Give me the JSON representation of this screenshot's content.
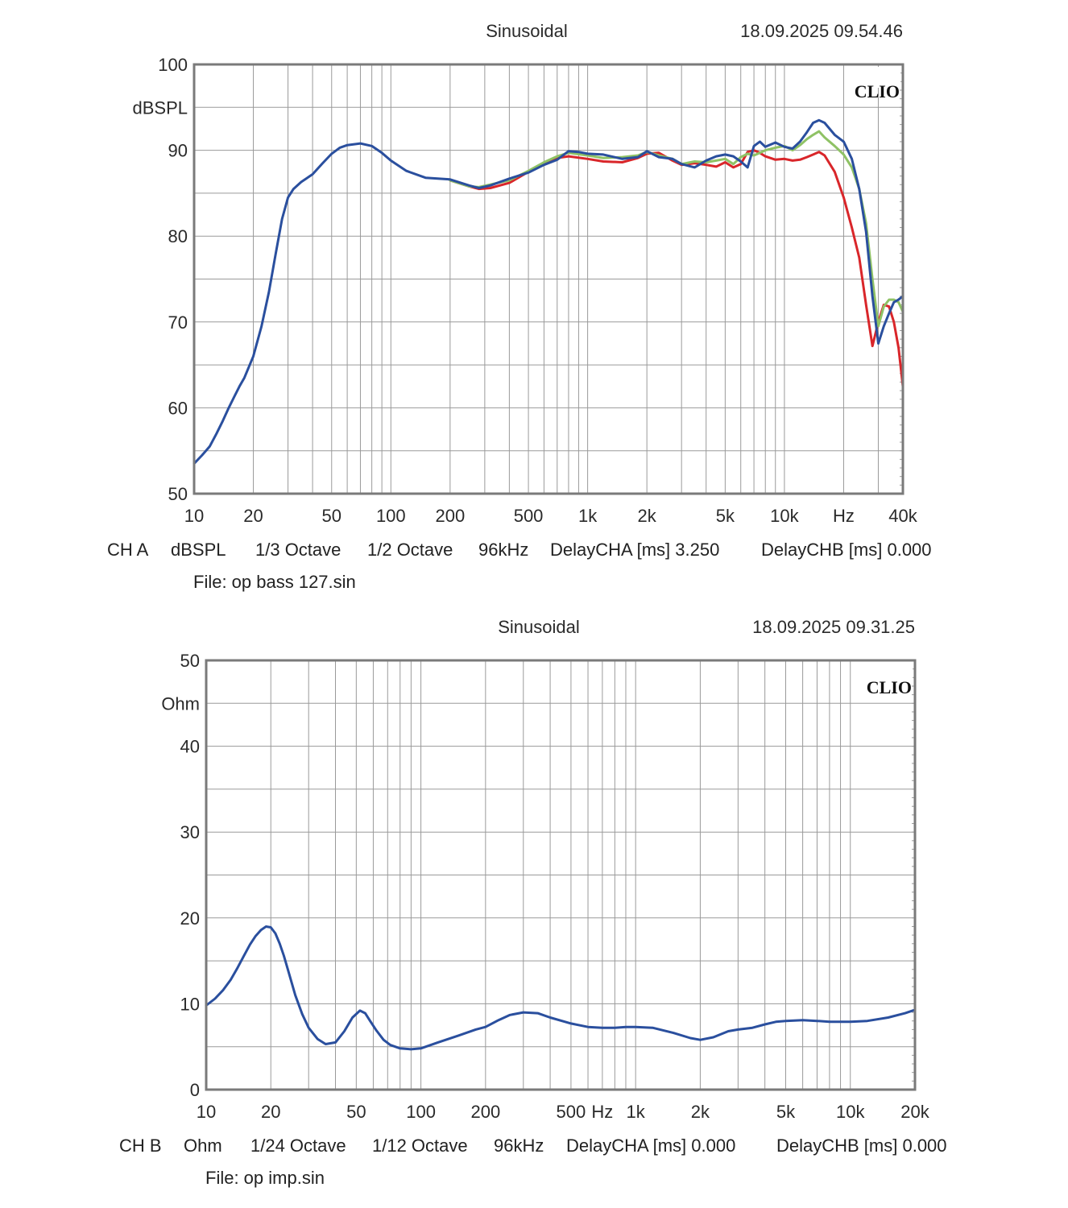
{
  "chart_data": [
    {
      "type": "line",
      "title": "Sinusoidal",
      "timestamp": "18.09.2025 09.54.46",
      "brand": "CLIO",
      "ylabel": "dBSPL",
      "xlabel": "Hz",
      "xscale": "log",
      "xlim": [
        10,
        40000
      ],
      "ylim": [
        50,
        100
      ],
      "y_ticks": [
        {
          "v": 100,
          "label": "100"
        },
        {
          "v": 90,
          "label": "90"
        },
        {
          "v": 80,
          "label": "80"
        },
        {
          "v": 70,
          "label": "70"
        },
        {
          "v": 60,
          "label": "60"
        },
        {
          "v": 50,
          "label": "50"
        }
      ],
      "x_ticks": [
        {
          "v": 10,
          "label": "10"
        },
        {
          "v": 20,
          "label": "20"
        },
        {
          "v": 50,
          "label": "50"
        },
        {
          "v": 100,
          "label": "100"
        },
        {
          "v": 200,
          "label": "200"
        },
        {
          "v": 500,
          "label": "500"
        },
        {
          "v": 1000,
          "label": "1k"
        },
        {
          "v": 2000,
          "label": "2k"
        },
        {
          "v": 5000,
          "label": "5k"
        },
        {
          "v": 10000,
          "label": "10k"
        },
        {
          "v": 40000,
          "label": "40k"
        }
      ],
      "xunit_at": 20000,
      "series": [
        {
          "name": "red",
          "color": "#d9262a",
          "x": [
            200,
            250,
            280,
            320,
            400,
            500,
            600,
            700,
            800,
            1000,
            1200,
            1500,
            1800,
            2000,
            2300,
            2700,
            3000,
            3500,
            4000,
            4500,
            5000,
            5500,
            6000,
            6500,
            7000,
            7500,
            8000,
            9000,
            10000,
            11000,
            12000,
            13000,
            14000,
            15000,
            16000,
            18000,
            20000,
            22000,
            24000,
            26000,
            28000,
            30000,
            32000,
            34000,
            36000,
            38000,
            40000
          ],
          "y": [
            86.5,
            85.8,
            85.5,
            85.6,
            86.2,
            87.5,
            88.5,
            89.1,
            89.3,
            89.0,
            88.7,
            88.6,
            89.1,
            89.6,
            89.7,
            88.8,
            88.3,
            88.5,
            88.3,
            88.1,
            88.6,
            88.0,
            88.4,
            89.8,
            90.0,
            89.7,
            89.3,
            88.9,
            89.0,
            88.8,
            88.9,
            89.2,
            89.5,
            89.8,
            89.4,
            87.5,
            84.5,
            81.0,
            77.5,
            72.0,
            67.2,
            70.0,
            72.0,
            71.8,
            70.0,
            67.0,
            62.5
          ]
        },
        {
          "name": "green",
          "color": "#8fc265",
          "x": [
            200,
            250,
            280,
            320,
            400,
            500,
            600,
            700,
            800,
            1000,
            1200,
            1500,
            1800,
            2000,
            2300,
            2700,
            3000,
            3500,
            4000,
            4500,
            5000,
            5500,
            6000,
            6500,
            7000,
            7500,
            8000,
            9000,
            10000,
            11000,
            12000,
            13000,
            14000,
            15000,
            16000,
            18000,
            20000,
            22000,
            24000,
            26000,
            28000,
            30000,
            32000,
            34000,
            36000,
            38000,
            40000
          ],
          "y": [
            86.5,
            85.8,
            85.7,
            86.0,
            86.5,
            87.6,
            88.6,
            89.3,
            89.7,
            89.4,
            89.1,
            89.2,
            89.4,
            89.8,
            89.4,
            89.0,
            88.4,
            88.7,
            88.6,
            88.8,
            89.0,
            88.4,
            89.2,
            89.6,
            89.4,
            89.7,
            90.0,
            90.3,
            90.5,
            90.0,
            90.6,
            91.3,
            91.8,
            92.2,
            91.5,
            90.5,
            89.5,
            88.0,
            85.5,
            81.5,
            75.0,
            69.5,
            71.8,
            72.6,
            72.6,
            72.3,
            71.2
          ]
        },
        {
          "name": "blue",
          "color": "#2a4f9e",
          "x": [
            10,
            11,
            12,
            13,
            14,
            15,
            16,
            17,
            18,
            20,
            22,
            24,
            26,
            28,
            30,
            32,
            35,
            40,
            45,
            50,
            55,
            60,
            70,
            80,
            90,
            100,
            120,
            150,
            200,
            250,
            280,
            320,
            400,
            500,
            600,
            700,
            800,
            900,
            1000,
            1200,
            1500,
            1800,
            2000,
            2300,
            2700,
            3000,
            3500,
            4000,
            4500,
            5000,
            5500,
            6000,
            6500,
            7000,
            7500,
            8000,
            9000,
            10000,
            11000,
            12000,
            13000,
            14000,
            15000,
            16000,
            18000,
            20000,
            22000,
            24000,
            26000,
            28000,
            30000,
            32000,
            34000,
            36000,
            38000,
            40000
          ],
          "y": [
            53.5,
            54.5,
            55.5,
            57.0,
            58.5,
            60.0,
            61.3,
            62.5,
            63.5,
            66.0,
            69.5,
            73.5,
            78.0,
            82.0,
            84.5,
            85.5,
            86.3,
            87.2,
            88.5,
            89.6,
            90.3,
            90.6,
            90.8,
            90.5,
            89.7,
            88.8,
            87.6,
            86.8,
            86.6,
            85.9,
            85.6,
            85.9,
            86.7,
            87.4,
            88.3,
            88.9,
            89.9,
            89.8,
            89.6,
            89.5,
            89.0,
            89.2,
            89.9,
            89.2,
            89.0,
            88.4,
            88.0,
            88.8,
            89.3,
            89.5,
            89.3,
            88.7,
            88.0,
            90.5,
            91.0,
            90.4,
            90.9,
            90.4,
            90.2,
            91.0,
            92.1,
            93.2,
            93.5,
            93.2,
            91.8,
            91.0,
            89.0,
            85.5,
            80.5,
            73.0,
            67.5,
            69.5,
            71.0,
            72.3,
            72.6,
            73.0
          ]
        }
      ],
      "footer": {
        "channel": "CH A",
        "unit": "dBSPL",
        "smoothing": "1/3 Octave",
        "resolution": "1/2 Octave",
        "sample_rate": "96kHz",
        "delay_a": "DelayCHA [ms] 3.250",
        "delay_b": "DelayCHB [ms] 0.000",
        "file": "File: op bass 127.sin"
      }
    },
    {
      "type": "line",
      "title": "Sinusoidal",
      "timestamp": "18.09.2025 09.31.25",
      "brand": "CLIO",
      "ylabel": "Ohm",
      "xlabel": "Hz",
      "xscale": "log",
      "xlim": [
        10,
        20000
      ],
      "ylim": [
        0,
        50
      ],
      "y_ticks": [
        {
          "v": 50,
          "label": "50"
        },
        {
          "v": 40,
          "label": "40"
        },
        {
          "v": 30,
          "label": "30"
        },
        {
          "v": 20,
          "label": "20"
        },
        {
          "v": 10,
          "label": "10"
        },
        {
          "v": 0,
          "label": "0"
        }
      ],
      "x_ticks": [
        {
          "v": 10,
          "label": "10"
        },
        {
          "v": 20,
          "label": "20"
        },
        {
          "v": 50,
          "label": "50"
        },
        {
          "v": 100,
          "label": "100"
        },
        {
          "v": 200,
          "label": "200"
        },
        {
          "v": 500,
          "label": "500"
        },
        {
          "v": 1000,
          "label": "1k"
        },
        {
          "v": 2000,
          "label": "2k"
        },
        {
          "v": 5000,
          "label": "5k"
        },
        {
          "v": 10000,
          "label": "10k"
        },
        {
          "v": 20000,
          "label": "20k"
        }
      ],
      "xunit_at": 700,
      "series": [
        {
          "name": "impedance",
          "color": "#2a4f9e",
          "x": [
            10,
            11,
            12,
            13,
            14,
            15,
            16,
            17,
            18,
            19,
            20,
            21,
            22,
            23,
            24,
            26,
            28,
            30,
            33,
            36,
            40,
            44,
            48,
            52,
            55,
            58,
            62,
            67,
            72,
            80,
            90,
            100,
            120,
            150,
            180,
            200,
            230,
            260,
            300,
            350,
            400,
            500,
            600,
            700,
            800,
            900,
            1000,
            1200,
            1500,
            1800,
            2000,
            2300,
            2700,
            3000,
            3500,
            4000,
            4500,
            5000,
            6000,
            7000,
            8000,
            9000,
            10000,
            12000,
            15000,
            18000,
            20000
          ],
          "y": [
            9.8,
            10.6,
            11.6,
            12.8,
            14.2,
            15.6,
            16.9,
            17.9,
            18.6,
            19.0,
            18.9,
            18.2,
            17.0,
            15.6,
            14.0,
            11.0,
            8.8,
            7.2,
            5.9,
            5.3,
            5.5,
            6.8,
            8.4,
            9.2,
            8.9,
            8.0,
            6.9,
            5.8,
            5.2,
            4.8,
            4.7,
            4.8,
            5.5,
            6.3,
            7.0,
            7.3,
            8.1,
            8.7,
            9.0,
            8.9,
            8.4,
            7.7,
            7.3,
            7.2,
            7.2,
            7.3,
            7.3,
            7.2,
            6.6,
            6.0,
            5.8,
            6.1,
            6.8,
            7.0,
            7.2,
            7.6,
            7.9,
            8.0,
            8.1,
            8.0,
            7.9,
            7.9,
            7.9,
            8.0,
            8.4,
            8.9,
            9.3
          ]
        }
      ],
      "footer": {
        "channel": "CH B",
        "unit": "Ohm",
        "smoothing": "1/24 Octave",
        "resolution": "1/12 Octave",
        "sample_rate": "96kHz",
        "delay_a": "DelayCHA [ms] 0.000",
        "delay_b": "DelayCHB [ms] 0.000",
        "file": "File: op imp.sin"
      }
    }
  ]
}
